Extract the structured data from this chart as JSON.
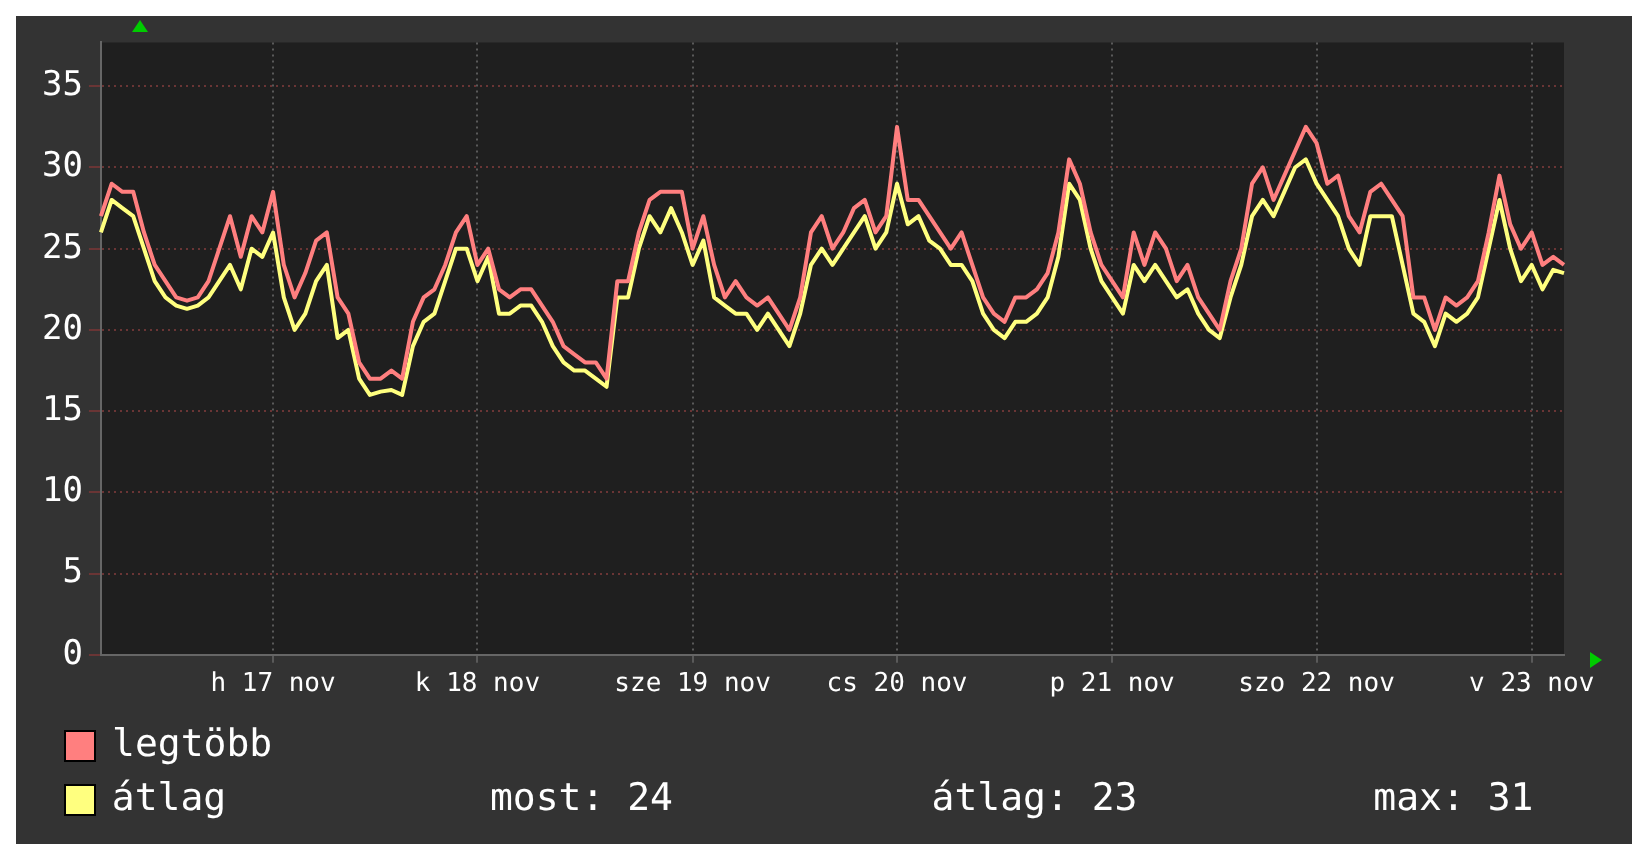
{
  "chart_data": {
    "type": "line",
    "categories": [
      null,
      null,
      null,
      null,
      null,
      null,
      null,
      null,
      null,
      null,
      null,
      null,
      null,
      null,
      null,
      null,
      "h 17 nov",
      null,
      null,
      null,
      null,
      null,
      null,
      null,
      null,
      null,
      null,
      null,
      null,
      null,
      null,
      null,
      null,
      null,
      null,
      "k 18 nov",
      null,
      null,
      null,
      null,
      null,
      null,
      null,
      null,
      null,
      null,
      null,
      null,
      null,
      null,
      null,
      null,
      null,
      null,
      null,
      "sze 19 nov",
      null,
      null,
      null,
      null,
      null,
      null,
      null,
      null,
      null,
      null,
      null,
      null,
      null,
      null,
      null,
      null,
      null,
      null,
      "cs 20 nov",
      null,
      null,
      null,
      null,
      null,
      null,
      null,
      null,
      null,
      null,
      null,
      null,
      null,
      null,
      null,
      null,
      null,
      null,
      null,
      "p 21 nov",
      null,
      null,
      null,
      null,
      null,
      null,
      null,
      null,
      null,
      null,
      null,
      null,
      null,
      null,
      null,
      null,
      null,
      null,
      "szo 22 nov",
      null,
      null,
      null,
      null,
      null,
      null,
      null,
      null,
      null,
      null,
      null,
      null,
      null,
      null,
      null,
      null,
      null,
      null,
      null,
      "v 23 nov",
      null,
      null,
      null
    ],
    "ylim": [
      0,
      37.7
    ],
    "yticks": [
      0,
      5,
      10,
      15,
      20,
      25,
      30,
      35
    ],
    "grid": true,
    "legend": "bottom",
    "annotations": [
      "most: 24",
      "átlag: 23",
      "max: 31"
    ],
    "series": [
      {
        "name": "legtöbb",
        "color": "#ff7f7f",
        "values": [
          27,
          29,
          28.5,
          28.5,
          26,
          24,
          23,
          22,
          21.8,
          22,
          23,
          25,
          27,
          24.5,
          27,
          26,
          28.5,
          24,
          22,
          23.5,
          25.5,
          26,
          22,
          21,
          18,
          17,
          17,
          17.5,
          17,
          20.5,
          22,
          22.5,
          24,
          26,
          27,
          24,
          25,
          22.5,
          22,
          22.5,
          22.5,
          21.5,
          20.5,
          19,
          18.5,
          18,
          18,
          17,
          23,
          23,
          26,
          28,
          28.5,
          28.5,
          28.5,
          25,
          27,
          24,
          22,
          23,
          22,
          21.5,
          22,
          21,
          20,
          22,
          26,
          27,
          25,
          26,
          27.5,
          28,
          26,
          27,
          32.5,
          28,
          28,
          27,
          26,
          25,
          26,
          24,
          22,
          21,
          20.5,
          22,
          22,
          22.5,
          23.5,
          26,
          30.5,
          29,
          26,
          24,
          23,
          22,
          26,
          24,
          26,
          25,
          23,
          24,
          22,
          21,
          20,
          23,
          25,
          29,
          30,
          28,
          29.5,
          31,
          32.5,
          31.5,
          29,
          29.5,
          27,
          26,
          28.5,
          29,
          28,
          27,
          22,
          22,
          20,
          22,
          21.5,
          22,
          23,
          26,
          29.5,
          26.5,
          25,
          26,
          24,
          24.5,
          24
        ]
      },
      {
        "name": "átlag",
        "color": "#ffff7f",
        "values": [
          26,
          28,
          27.5,
          27,
          25,
          23,
          22,
          21.5,
          21.3,
          21.5,
          22,
          23,
          24,
          22.5,
          25,
          24.5,
          26,
          22,
          20,
          21,
          23,
          24,
          19.5,
          20,
          17,
          16,
          16.2,
          16.3,
          16,
          19,
          20.5,
          21,
          23,
          25,
          25,
          23,
          24.5,
          21,
          21,
          21.5,
          21.5,
          20.5,
          19,
          18,
          17.5,
          17.5,
          17,
          16.5,
          22,
          22,
          25,
          27,
          26,
          27.5,
          26,
          24,
          25.5,
          22,
          21.5,
          21,
          21,
          20,
          21,
          20,
          19,
          21,
          24,
          25,
          24,
          25,
          26,
          27,
          25,
          26,
          29,
          26.5,
          27,
          25.5,
          25,
          24,
          24,
          23,
          21,
          20,
          19.5,
          20.5,
          20.5,
          21,
          22,
          24.5,
          29,
          28,
          25,
          23,
          22,
          21,
          24,
          23,
          24,
          23,
          22,
          22.5,
          21,
          20,
          19.5,
          22,
          24,
          27,
          28,
          27,
          28.5,
          30,
          30.5,
          29,
          28,
          27,
          25,
          24,
          27,
          27,
          27,
          24,
          21,
          20.5,
          19,
          21,
          20.5,
          21,
          22,
          25,
          28,
          25,
          23,
          24,
          22.5,
          23.7,
          23.5
        ]
      }
    ]
  }
}
